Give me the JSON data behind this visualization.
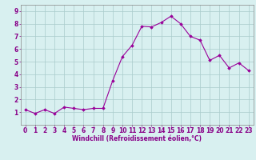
{
  "x": [
    0,
    1,
    2,
    3,
    4,
    5,
    6,
    7,
    8,
    9,
    10,
    11,
    12,
    13,
    14,
    15,
    16,
    17,
    18,
    19,
    20,
    21,
    22,
    23
  ],
  "y": [
    1.2,
    0.9,
    1.2,
    0.9,
    1.4,
    1.3,
    1.2,
    1.3,
    1.3,
    3.5,
    5.4,
    6.3,
    7.8,
    7.75,
    8.1,
    8.6,
    8.0,
    7.0,
    6.7,
    5.1,
    5.5,
    4.5,
    4.9,
    4.3
  ],
  "xlabel": "Windchill (Refroidissement éolien,°C)",
  "xlim": [
    -0.5,
    23.5
  ],
  "ylim": [
    0,
    9.5
  ],
  "xticks": [
    0,
    1,
    2,
    3,
    4,
    5,
    6,
    7,
    8,
    9,
    10,
    11,
    12,
    13,
    14,
    15,
    16,
    17,
    18,
    19,
    20,
    21,
    22,
    23
  ],
  "yticks": [
    1,
    2,
    3,
    4,
    5,
    6,
    7,
    8,
    9
  ],
  "line_color": "#990099",
  "marker": "D",
  "marker_size": 1.8,
  "bg_color": "#d8f0f0",
  "grid_color": "#aacccc",
  "tick_color": "#880088",
  "label_color": "#880088",
  "xlabel_fontsize": 5.5,
  "tick_fontsize": 5.5,
  "spine_color": "#888888"
}
